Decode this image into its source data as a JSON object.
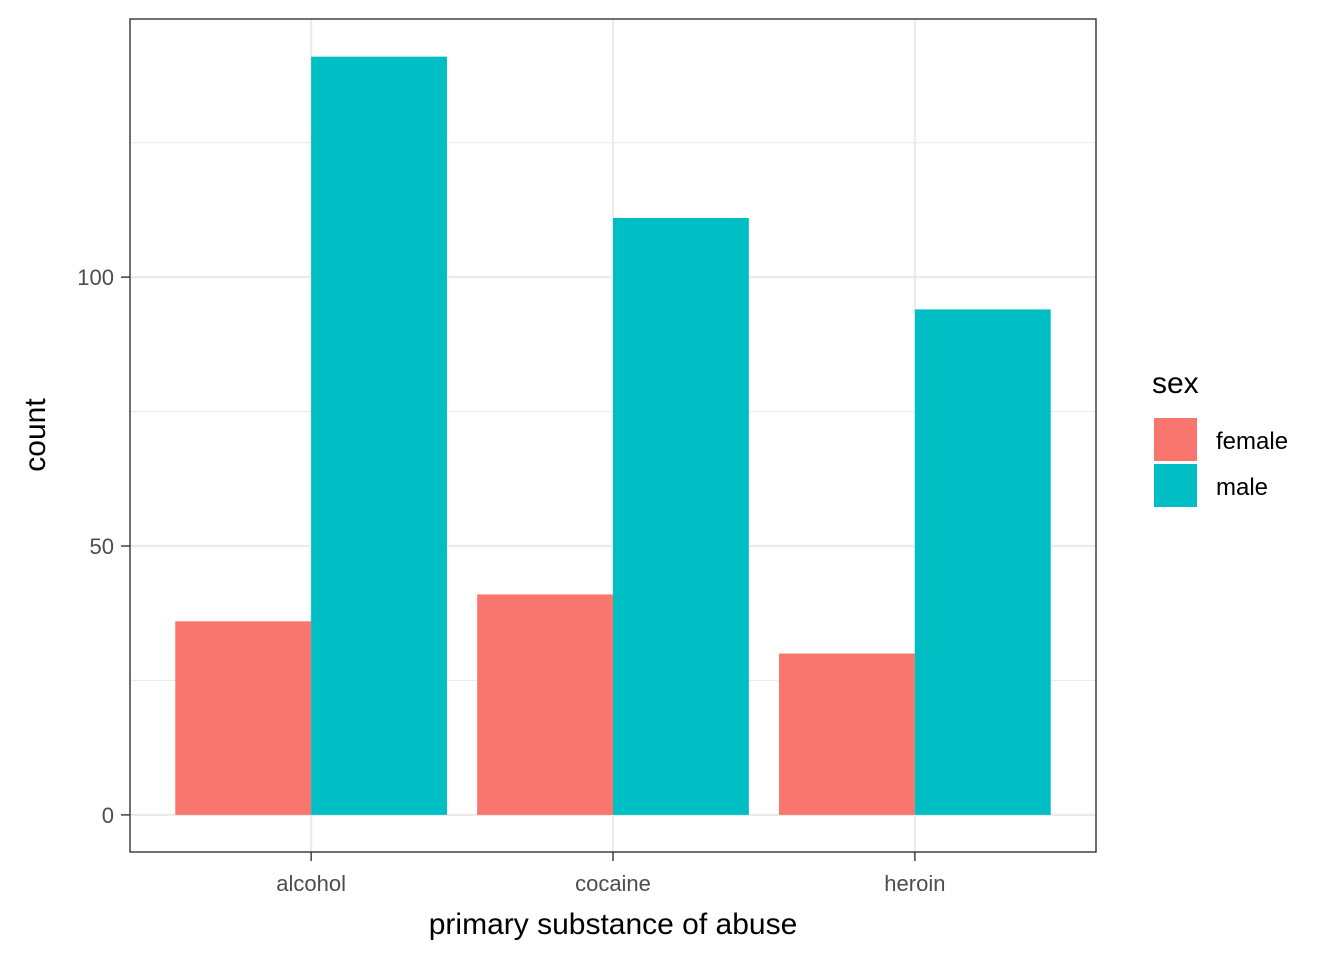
{
  "chart_data": {
    "type": "bar",
    "title": "",
    "xlabel": "primary substance of abuse",
    "ylabel": "count",
    "categories": [
      "alcohol",
      "cocaine",
      "heroin"
    ],
    "series": [
      {
        "name": "female",
        "values": [
          36,
          41,
          30
        ],
        "color": "#F8766D"
      },
      {
        "name": "male",
        "values": [
          141,
          111,
          94
        ],
        "color": "#00BFC4"
      }
    ],
    "ylim": [
      -6.9,
      148
    ],
    "yticks": [
      0,
      50,
      100
    ],
    "yticks_minor": [
      25,
      75,
      125
    ],
    "grid": true,
    "legend": {
      "title": "sex",
      "position": "right"
    }
  }
}
